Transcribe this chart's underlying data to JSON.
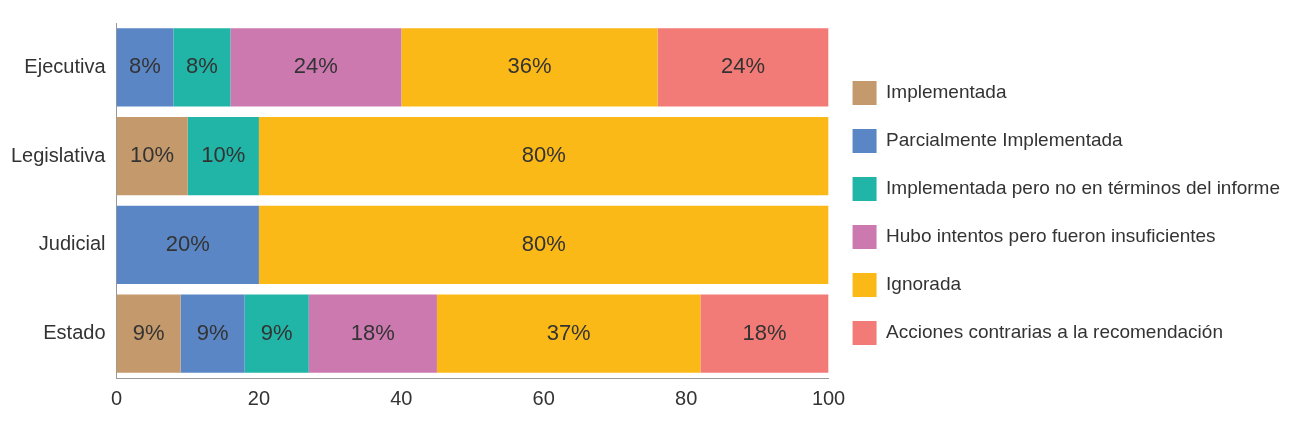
{
  "chart_data": {
    "type": "bar",
    "orientation": "horizontal",
    "stacked": true,
    "categories": [
      "Ejecutiva",
      "Legislativa",
      "Judicial",
      "Estado"
    ],
    "series": [
      {
        "name": "Implementada",
        "color": "#c49a6c",
        "values": [
          null,
          10,
          null,
          9
        ],
        "value_labels": [
          null,
          "10%",
          null,
          "9%"
        ]
      },
      {
        "name": "Parcialmente Implementada",
        "color": "#5b86c5",
        "values": [
          8,
          null,
          20,
          9
        ],
        "value_labels": [
          "8%",
          null,
          "20%",
          "9%"
        ]
      },
      {
        "name": "Implementada pero no en términos del informe",
        "color": "#20b5a6",
        "values": [
          8,
          10,
          null,
          9
        ],
        "value_labels": [
          "8%",
          "10%",
          null,
          "9%"
        ]
      },
      {
        "name": "Hubo intentos pero fueron insuficientes",
        "color": "#cc79b0",
        "values": [
          24,
          null,
          null,
          18
        ],
        "value_labels": [
          "24%",
          null,
          null,
          "18%"
        ]
      },
      {
        "name": "Ignorada",
        "color": "#fbb917",
        "values": [
          36,
          80,
          80,
          37
        ],
        "value_labels": [
          "36%",
          "80%",
          "80%",
          "37%"
        ]
      },
      {
        "name": "Acciones contrarias a la recomendación",
        "color": "#f37b77",
        "values": [
          24,
          null,
          null,
          18
        ],
        "value_labels": [
          "24%",
          null,
          null,
          "18%"
        ]
      }
    ],
    "xlim": [
      0,
      100
    ],
    "xticks": [
      0,
      20,
      40,
      60,
      80,
      100
    ],
    "grid": false,
    "legend": "right"
  }
}
